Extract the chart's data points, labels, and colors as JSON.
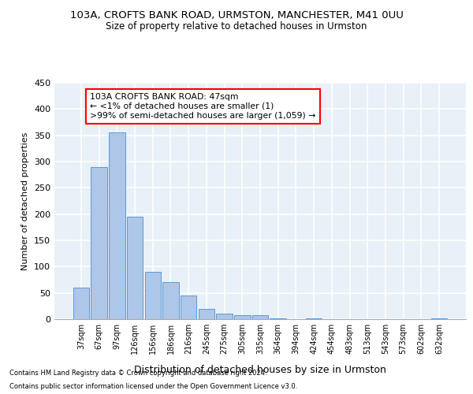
{
  "title_line1": "103A, CROFTS BANK ROAD, URMSTON, MANCHESTER, M41 0UU",
  "title_line2": "Size of property relative to detached houses in Urmston",
  "xlabel": "Distribution of detached houses by size in Urmston",
  "ylabel": "Number of detached properties",
  "categories": [
    "37sqm",
    "67sqm",
    "97sqm",
    "126sqm",
    "156sqm",
    "186sqm",
    "216sqm",
    "245sqm",
    "275sqm",
    "305sqm",
    "335sqm",
    "364sqm",
    "394sqm",
    "424sqm",
    "454sqm",
    "483sqm",
    "513sqm",
    "543sqm",
    "573sqm",
    "602sqm",
    "632sqm"
  ],
  "values": [
    60,
    290,
    355,
    195,
    90,
    70,
    45,
    20,
    10,
    8,
    8,
    2,
    0,
    1,
    0,
    0,
    0,
    0,
    0,
    0,
    1
  ],
  "bar_color": "#aec6e8",
  "bar_edge_color": "#5b9bd5",
  "annotation_line1": "103A CROFTS BANK ROAD: 47sqm",
  "annotation_line2": "← <1% of detached houses are smaller (1)",
  "annotation_line3": ">99% of semi-detached houses are larger (1,059) →",
  "ylim": [
    0,
    450
  ],
  "yticks": [
    0,
    50,
    100,
    150,
    200,
    250,
    300,
    350,
    400,
    450
  ],
  "background_color": "#e8f0f8",
  "grid_color": "#ffffff",
  "footnote_line1": "Contains HM Land Registry data © Crown copyright and database right 2024.",
  "footnote_line2": "Contains public sector information licensed under the Open Government Licence v3.0."
}
